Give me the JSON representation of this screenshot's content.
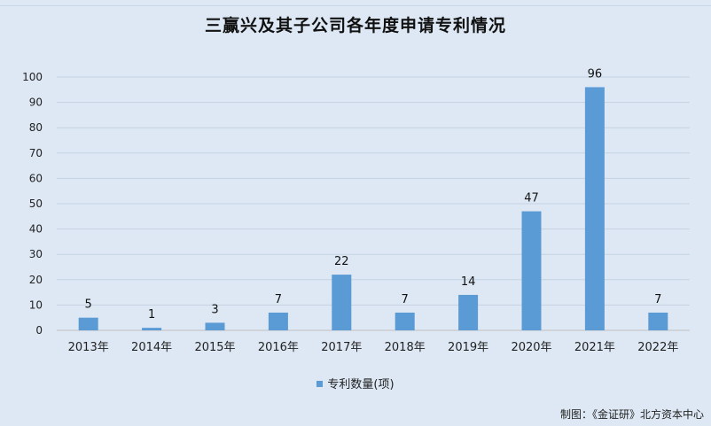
{
  "chart_data": {
    "type": "bar",
    "title": "三赢兴及其子公司各年度申请专利情况",
    "categories": [
      "2013年",
      "2014年",
      "2015年",
      "2016年",
      "2017年",
      "2018年",
      "2019年",
      "2020年",
      "2021年",
      "2022年"
    ],
    "series": [
      {
        "name": "专利数量(项)",
        "values": [
          5,
          1,
          3,
          7,
          22,
          7,
          14,
          47,
          96,
          7
        ],
        "color": "#5b9bd5"
      }
    ],
    "xlabel": "",
    "ylabel": "",
    "ylim": [
      0,
      100
    ],
    "yticks": [
      "0",
      "10",
      "20",
      "30",
      "40",
      "50",
      "60",
      "70",
      "80",
      "90",
      "100"
    ],
    "grid": true,
    "legend_position": "bottom",
    "data_labels": true
  },
  "footer": {
    "source": "制图：《金证研》北方资本中心"
  }
}
